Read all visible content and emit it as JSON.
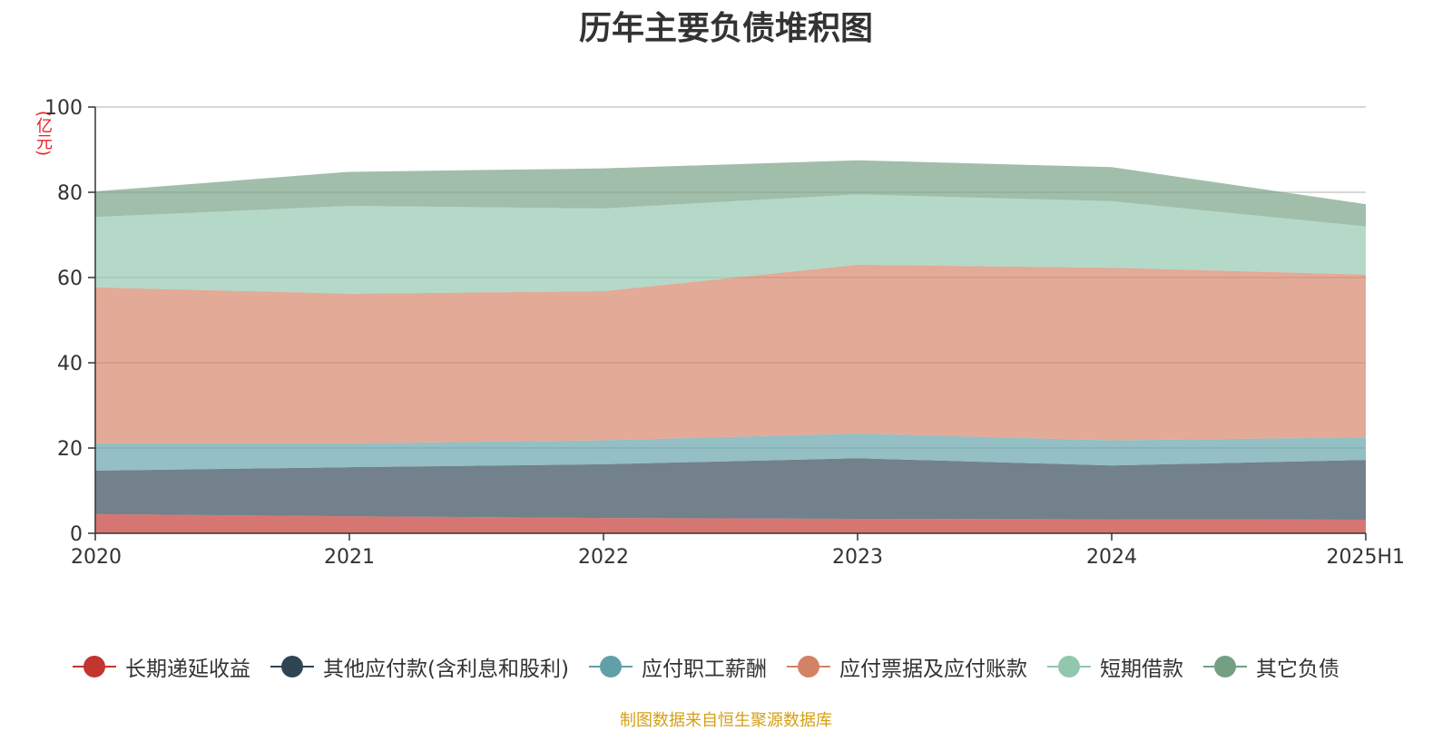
{
  "title": "历年主要负债堆积图",
  "unit_label": "(亿元)",
  "source_note": "制图数据来自恒生聚源数据库",
  "chart_data": {
    "type": "area",
    "stacked": true,
    "categories": [
      "2020",
      "2021",
      "2022",
      "2023",
      "2024",
      "2025H1"
    ],
    "ylim": [
      0,
      100
    ],
    "yticks": [
      "0",
      "20",
      "40",
      "60",
      "80",
      "100"
    ],
    "grid": true,
    "legend_position": "bottom",
    "series": [
      {
        "name": "长期递延收益",
        "color": "#c23531",
        "values": [
          4.5,
          4.0,
          3.6,
          3.4,
          3.3,
          3.2
        ]
      },
      {
        "name": "其他应付款(含利息和股利)",
        "color": "#2f4554",
        "values": [
          10.2,
          11.5,
          12.6,
          14.2,
          12.6,
          14.0
        ]
      },
      {
        "name": "应付职工薪酬",
        "color": "#61a0a8",
        "values": [
          6.4,
          5.6,
          5.6,
          5.8,
          5.9,
          5.3
        ]
      },
      {
        "name": "应付票据及应付账款",
        "color": "#d48265",
        "values": [
          36.6,
          35.1,
          35.0,
          39.6,
          40.5,
          38.2
        ]
      },
      {
        "name": "短期借款",
        "color": "#91c7ae",
        "values": [
          16.5,
          20.6,
          19.4,
          16.5,
          15.6,
          11.3
        ]
      },
      {
        "name": "其它负债",
        "color": "#749f83",
        "values": [
          6.0,
          8.0,
          9.4,
          8.0,
          8.0,
          5.2
        ]
      }
    ]
  }
}
